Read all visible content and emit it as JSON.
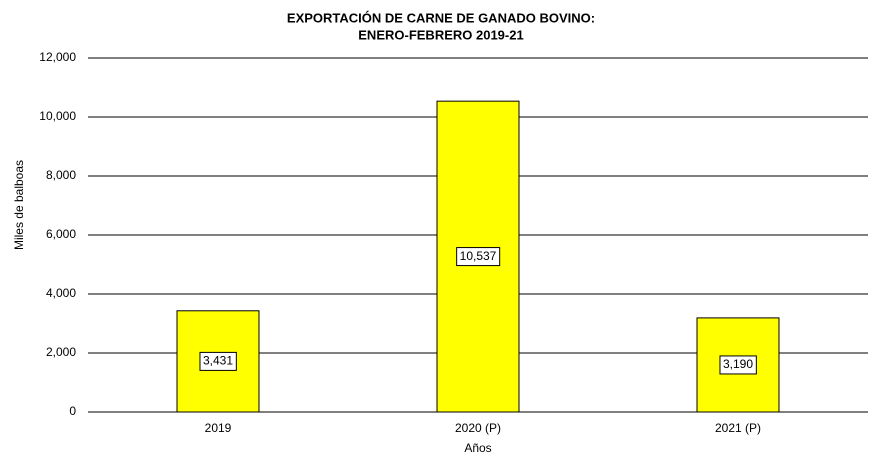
{
  "chart_data": {
    "type": "bar",
    "title": [
      "EXPORTACIÓN  DE  CARNE  DE  GANADO  BOVINO:",
      "ENERO-FEBRERO  2019-21"
    ],
    "y_label": "Miles de balboas",
    "x_label": "Años",
    "categories": [
      "2019",
      "2020 (P)",
      "2021 (P)"
    ],
    "values": [
      3431,
      10537,
      3190
    ],
    "value_labels": [
      "3,431",
      "10,537",
      "3,190"
    ],
    "color": "#ffff00",
    "ylim": [
      0,
      12000
    ],
    "yticks": [
      0,
      {
        "value": 2000,
        "label": "2,000"
      },
      {
        "value": 4000,
        "label": "4,000"
      },
      {
        "value": 6000,
        "label": "6,000"
      },
      {
        "value": 8000,
        "label": "8,000"
      },
      {
        "value": 10000,
        "label": "10,000"
      },
      {
        "value": 12000,
        "label": "12,000"
      }
    ],
    "grid": true
  }
}
